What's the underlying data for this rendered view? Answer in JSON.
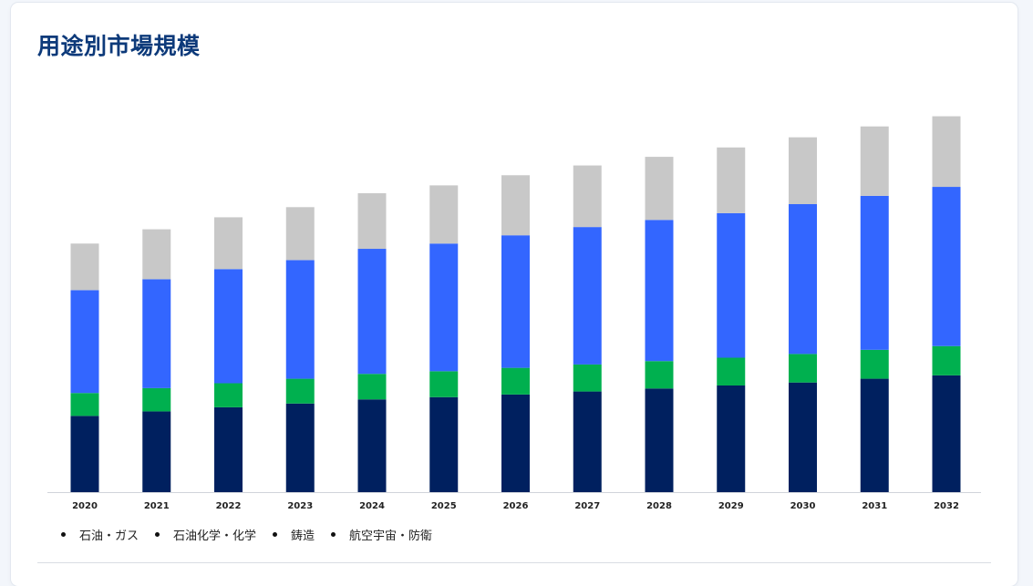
{
  "header": {
    "title": "用途別市場規模"
  },
  "legend": [
    {
      "label": "石油・ガス"
    },
    {
      "label": "石油化学・化学"
    },
    {
      "label": "鋳造"
    },
    {
      "label": "航空宇宙・防衛"
    }
  ],
  "chart_data": {
    "type": "bar",
    "stacked": true,
    "title": "用途別市場規模",
    "xlabel": "",
    "ylabel": "",
    "categories": [
      "2020",
      "2021",
      "2022",
      "2023",
      "2024",
      "2025",
      "2026",
      "2027",
      "2028",
      "2029",
      "2030",
      "2031",
      "2032"
    ],
    "ylim": [
      0,
      100
    ],
    "grid": false,
    "legend_position": "bottom-left",
    "series": [
      {
        "name": "石油・ガス",
        "color": "#00205f",
        "values": [
          20.3,
          21.5,
          22.6,
          23.6,
          24.7,
          25.3,
          26.0,
          26.8,
          27.6,
          28.4,
          29.2,
          30.2,
          31.1
        ]
      },
      {
        "name": "石油化学・化学",
        "color": "#00b04f",
        "values": [
          6.1,
          6.2,
          6.4,
          6.6,
          6.8,
          6.9,
          7.1,
          7.2,
          7.3,
          7.4,
          7.6,
          7.7,
          7.8
        ]
      },
      {
        "name": "鋳造",
        "color": "#3366ff",
        "values": [
          27.4,
          29.0,
          30.4,
          31.6,
          33.3,
          34.0,
          35.3,
          36.6,
          37.6,
          38.5,
          39.9,
          41.0,
          42.4
        ]
      },
      {
        "name": "航空宇宙・防衛",
        "color": "#c8c8c8",
        "values": [
          12.4,
          13.3,
          13.8,
          14.1,
          14.8,
          15.5,
          16.0,
          16.4,
          16.8,
          17.5,
          17.8,
          18.5,
          18.8
        ]
      }
    ]
  }
}
